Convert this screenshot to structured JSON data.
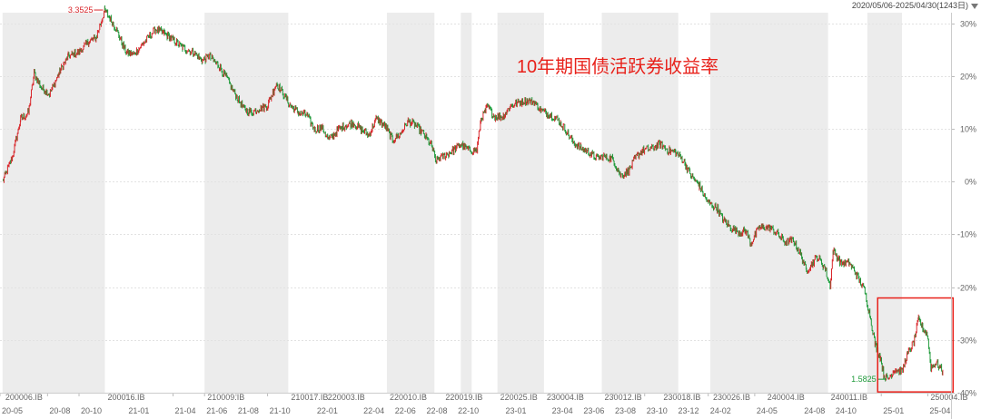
{
  "header": {
    "date_range": "2020/05/06-2025/04/30(1243日)",
    "dropdown_icon": "triangle-down-icon"
  },
  "chart_data": {
    "type": "line",
    "title": "10年期国债活跃券收益率",
    "ylabel": "",
    "xlabel": "",
    "yaxis": {
      "unit": "%",
      "ticks": [
        "30%",
        "20%",
        "10%",
        "0%",
        "-10%",
        "-20%",
        "-30%",
        "-40%"
      ],
      "range": [
        -40,
        32
      ]
    },
    "x_ticks": [
      "20-05",
      "20-08",
      "20-10",
      "21-01",
      "21-04",
      "21-06",
      "21-08",
      "21-10",
      "22-01",
      "22-04",
      "22-06",
      "22-08",
      "22-10",
      "23-01",
      "23-04",
      "23-06",
      "23-08",
      "23-10",
      "23-12",
      "24-02",
      "24-05",
      "24-08",
      "24-10",
      "25-01",
      "25-04"
    ],
    "bond_labels": [
      "200006.IB",
      "200016.IB",
      "210009.IB",
      "210017.IB",
      "220003.IB",
      "220010.IB",
      "220019.IB",
      "220025.IB",
      "230004.IB",
      "230012.IB",
      "230018.IB",
      "230026.IB",
      "240004.IB",
      "240011.IB",
      "250004.IB"
    ],
    "shaded_periods": [
      [
        "2020-05-06",
        "2020-11-20"
      ],
      [
        "2021-06-01",
        "2021-11-10"
      ],
      [
        "2022-05-20",
        "2022-08-20"
      ],
      [
        "2022-10-10",
        "2022-10-31"
      ],
      [
        "2022-12-20",
        "2023-03-20"
      ],
      [
        "2023-07-10",
        "2023-12-05"
      ],
      [
        "2024-02-05",
        "2024-09-20"
      ],
      [
        "2024-12-05",
        "2025-02-10"
      ]
    ],
    "series": [
      {
        "color_up": "#d9262b",
        "color_down": "#1f9a3a",
        "points": [
          [
            "2020-05-06",
            2.53
          ],
          [
            "2020-05-25",
            2.65
          ],
          [
            "2020-06-10",
            2.83
          ],
          [
            "2020-06-25",
            2.86
          ],
          [
            "2020-07-06",
            3.05
          ],
          [
            "2020-07-20",
            2.98
          ],
          [
            "2020-08-05",
            2.95
          ],
          [
            "2020-08-25",
            3.06
          ],
          [
            "2020-09-10",
            3.13
          ],
          [
            "2020-09-30",
            3.15
          ],
          [
            "2020-10-20",
            3.2
          ],
          [
            "2020-11-03",
            3.22
          ],
          [
            "2020-11-20",
            3.3525
          ],
          [
            "2020-12-10",
            3.27
          ],
          [
            "2020-12-31",
            3.15
          ],
          [
            "2021-01-15",
            3.14
          ],
          [
            "2021-02-05",
            3.2
          ],
          [
            "2021-02-26",
            3.26
          ],
          [
            "2021-03-15",
            3.24
          ],
          [
            "2021-04-01",
            3.21
          ],
          [
            "2021-04-20",
            3.17
          ],
          [
            "2021-05-10",
            3.15
          ],
          [
            "2021-05-28",
            3.11
          ],
          [
            "2021-06-10",
            3.13
          ],
          [
            "2021-06-30",
            3.08
          ],
          [
            "2021-07-15",
            3.02
          ],
          [
            "2021-07-30",
            2.95
          ],
          [
            "2021-08-16",
            2.88
          ],
          [
            "2021-08-31",
            2.86
          ],
          [
            "2021-09-15",
            2.88
          ],
          [
            "2021-09-30",
            2.89
          ],
          [
            "2021-10-18",
            3.0
          ],
          [
            "2021-10-29",
            2.96
          ],
          [
            "2021-11-15",
            2.89
          ],
          [
            "2021-11-30",
            2.86
          ],
          [
            "2021-12-15",
            2.85
          ],
          [
            "2021-12-31",
            2.78
          ],
          [
            "2022-01-14",
            2.79
          ],
          [
            "2022-01-28",
            2.73
          ],
          [
            "2022-02-15",
            2.78
          ],
          [
            "2022-03-01",
            2.8
          ],
          [
            "2022-03-16",
            2.81
          ],
          [
            "2022-03-31",
            2.78
          ],
          [
            "2022-04-15",
            2.75
          ],
          [
            "2022-04-29",
            2.83
          ],
          [
            "2022-05-16",
            2.8
          ],
          [
            "2022-05-31",
            2.73
          ],
          [
            "2022-06-15",
            2.76
          ],
          [
            "2022-06-30",
            2.82
          ],
          [
            "2022-07-15",
            2.8
          ],
          [
            "2022-07-29",
            2.76
          ],
          [
            "2022-08-15",
            2.7
          ],
          [
            "2022-08-22",
            2.63
          ],
          [
            "2022-09-05",
            2.65
          ],
          [
            "2022-09-20",
            2.67
          ],
          [
            "2022-10-10",
            2.71
          ],
          [
            "2022-10-25",
            2.68
          ],
          [
            "2022-11-10",
            2.68
          ],
          [
            "2022-11-18",
            2.83
          ],
          [
            "2022-12-01",
            2.89
          ],
          [
            "2022-12-15",
            2.84
          ],
          [
            "2022-12-30",
            2.84
          ],
          [
            "2023-01-13",
            2.89
          ],
          [
            "2023-01-31",
            2.91
          ],
          [
            "2023-02-15",
            2.92
          ],
          [
            "2023-03-01",
            2.91
          ],
          [
            "2023-03-15",
            2.87
          ],
          [
            "2023-03-31",
            2.85
          ],
          [
            "2023-04-14",
            2.83
          ],
          [
            "2023-04-28",
            2.79
          ],
          [
            "2023-05-15",
            2.72
          ],
          [
            "2023-05-31",
            2.69
          ],
          [
            "2023-06-15",
            2.67
          ],
          [
            "2023-06-30",
            2.64
          ],
          [
            "2023-07-14",
            2.65
          ],
          [
            "2023-07-31",
            2.64
          ],
          [
            "2023-08-15",
            2.56
          ],
          [
            "2023-08-31",
            2.58
          ],
          [
            "2023-09-15",
            2.65
          ],
          [
            "2023-09-28",
            2.68
          ],
          [
            "2023-10-16",
            2.69
          ],
          [
            "2023-10-31",
            2.71
          ],
          [
            "2023-11-15",
            2.68
          ],
          [
            "2023-11-30",
            2.67
          ],
          [
            "2023-12-15",
            2.63
          ],
          [
            "2023-12-29",
            2.56
          ],
          [
            "2024-01-15",
            2.51
          ],
          [
            "2024-01-31",
            2.43
          ],
          [
            "2024-02-19",
            2.4
          ],
          [
            "2024-02-29",
            2.35
          ],
          [
            "2024-03-15",
            2.31
          ],
          [
            "2024-03-29",
            2.29
          ],
          [
            "2024-04-15",
            2.29
          ],
          [
            "2024-04-23",
            2.23
          ],
          [
            "2024-05-10",
            2.31
          ],
          [
            "2024-05-31",
            2.31
          ],
          [
            "2024-06-14",
            2.28
          ],
          [
            "2024-06-28",
            2.24
          ],
          [
            "2024-07-15",
            2.25
          ],
          [
            "2024-07-31",
            2.17
          ],
          [
            "2024-08-09",
            2.1
          ],
          [
            "2024-08-30",
            2.17
          ],
          [
            "2024-09-13",
            2.12
          ],
          [
            "2024-09-24",
            2.03
          ],
          [
            "2024-09-30",
            2.2
          ],
          [
            "2024-10-15",
            2.14
          ],
          [
            "2024-10-31",
            2.14
          ],
          [
            "2024-11-15",
            2.08
          ],
          [
            "2024-11-29",
            2.01
          ],
          [
            "2024-12-10",
            1.89
          ],
          [
            "2024-12-20",
            1.75
          ],
          [
            "2024-12-31",
            1.68
          ],
          [
            "2025-01-06",
            1.6
          ],
          [
            "2025-01-14",
            1.5825
          ],
          [
            "2025-01-27",
            1.63
          ],
          [
            "2025-02-10",
            1.62
          ],
          [
            "2025-02-20",
            1.7
          ],
          [
            "2025-03-05",
            1.76
          ],
          [
            "2025-03-14",
            1.87
          ],
          [
            "2025-03-24",
            1.82
          ],
          [
            "2025-03-31",
            1.8
          ],
          [
            "2025-04-07",
            1.64
          ],
          [
            "2025-04-18",
            1.66
          ],
          [
            "2025-04-30",
            1.62
          ]
        ]
      }
    ],
    "base_value": 2.53,
    "annotations": {
      "max_label": "3.3525",
      "min_label": "1.5825"
    },
    "highlight_box": {
      "from": "2024-12-25",
      "to": "2025-05-20",
      "color": "#e8211a"
    },
    "grid": true,
    "legend": "none"
  }
}
